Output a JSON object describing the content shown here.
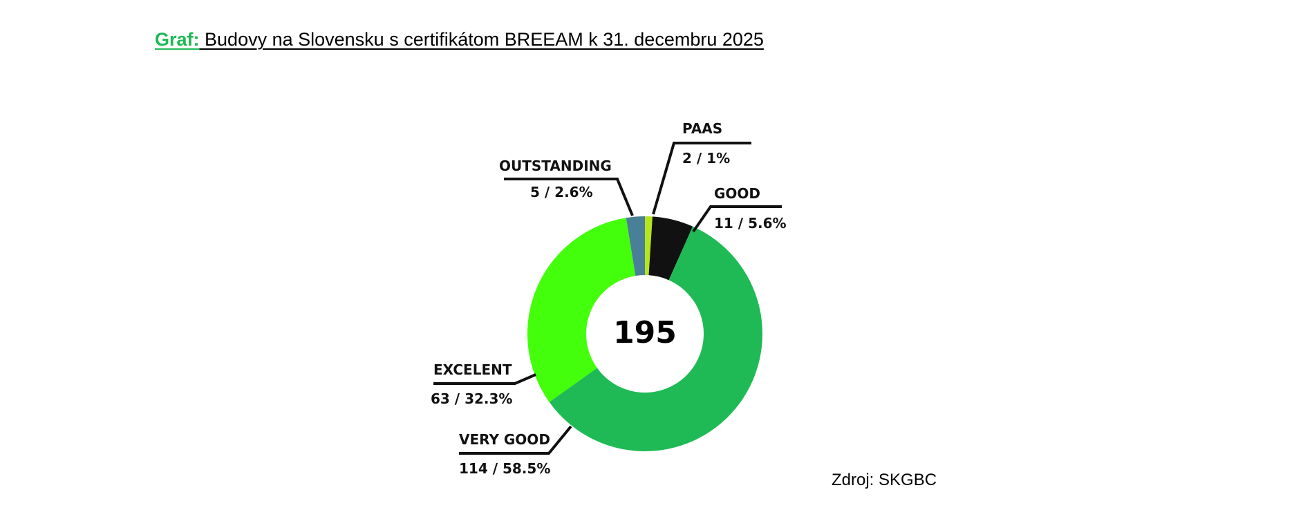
{
  "heading": {
    "prefix": "Graf:",
    "text": "Budovy na Slovensku s certifikátom BREEAM k 31. decembru 2025"
  },
  "source": "Zdroj: SKGBC",
  "colors": {
    "heading_prefix": "#1db954"
  },
  "chart_data": {
    "type": "pie",
    "donut": true,
    "center_label": "195",
    "total": 195,
    "slices": [
      {
        "name": "PAAS",
        "value": 2,
        "percent": 1,
        "value_label": "2 / 1%",
        "color": "#b5e61d"
      },
      {
        "name": "GOOD",
        "value": 11,
        "percent": 5.6,
        "value_label": "11 / 5.6%",
        "color": "#111111"
      },
      {
        "name": "VERY GOOD",
        "value": 114,
        "percent": 58.5,
        "value_label": "114 / 58.5%",
        "color": "#1fba55"
      },
      {
        "name": "EXCELENT",
        "value": 63,
        "percent": 32.3,
        "value_label": "63 / 32.3%",
        "color": "#44ff0b"
      },
      {
        "name": "OUTSTANDING",
        "value": 5,
        "percent": 2.6,
        "value_label": "5 / 2.6%",
        "color": "#4a7f98"
      }
    ]
  }
}
